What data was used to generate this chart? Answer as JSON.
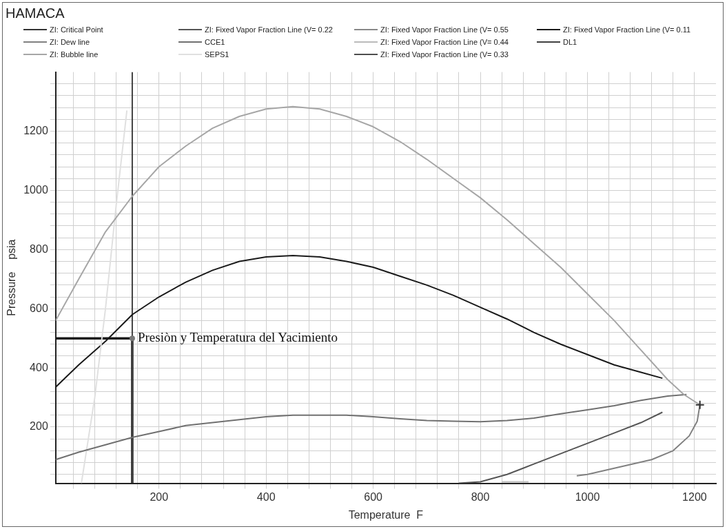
{
  "chart_data": {
    "type": "line",
    "title": "HAMACA",
    "xlabel": "Temperature  F",
    "ylabel": "Pressure    psia",
    "legend": "top",
    "grid": true,
    "xlim": [
      7,
      1240
    ],
    "ylim": [
      10,
      1400
    ],
    "xticks": [
      {
        "value": 40,
        "label": null
      },
      {
        "value": 80,
        "label": null
      },
      {
        "value": 120,
        "label": null
      },
      {
        "value": 160,
        "label": null
      },
      200,
      {
        "value": 240,
        "label": null
      },
      {
        "value": 280,
        "label": null
      },
      {
        "value": 320,
        "label": null
      },
      {
        "value": 360,
        "label": null
      },
      400,
      {
        "value": 440,
        "label": null
      },
      {
        "value": 480,
        "label": null
      },
      {
        "value": 520,
        "label": null
      },
      {
        "value": 560,
        "label": null
      },
      600,
      {
        "value": 640,
        "label": null
      },
      {
        "value": 680,
        "label": null
      },
      {
        "value": 720,
        "label": null
      },
      {
        "value": 760,
        "label": null
      },
      800,
      {
        "value": 840,
        "label": null
      },
      {
        "value": 880,
        "label": null
      },
      {
        "value": 920,
        "label": null
      },
      {
        "value": 960,
        "label": null
      },
      1000,
      {
        "value": 1040,
        "label": null
      },
      {
        "value": 1080,
        "label": null
      },
      {
        "value": 1120,
        "label": null
      },
      {
        "value": 1160,
        "label": null
      },
      1200
    ],
    "yticks": [
      {
        "value": 40,
        "label": null
      },
      {
        "value": 80,
        "label": null
      },
      {
        "value": 120,
        "label": null
      },
      {
        "value": 160,
        "label": null
      },
      200,
      {
        "value": 240,
        "label": null
      },
      {
        "value": 280,
        "label": null
      },
      {
        "value": 320,
        "label": null
      },
      {
        "value": 360,
        "label": null
      },
      400,
      {
        "value": 440,
        "label": null
      },
      {
        "value": 480,
        "label": null
      },
      {
        "value": 520,
        "label": null
      },
      {
        "value": 560,
        "label": null
      },
      600,
      {
        "value": 640,
        "label": null
      },
      {
        "value": 680,
        "label": null
      },
      {
        "value": 720,
        "label": null
      },
      {
        "value": 760,
        "label": null
      },
      800,
      {
        "value": 840,
        "label": null
      },
      {
        "value": 880,
        "label": null
      },
      {
        "value": 920,
        "label": null
      },
      {
        "value": 960,
        "label": null
      },
      1000,
      {
        "value": 1040,
        "label": null
      },
      {
        "value": 1080,
        "label": null
      },
      {
        "value": 1120,
        "label": null
      },
      {
        "value": 1160,
        "label": null
      },
      1200,
      {
        "value": 1240,
        "label": null
      },
      {
        "value": 1280,
        "label": null
      },
      {
        "value": 1320,
        "label": null
      },
      {
        "value": 1360,
        "label": null
      }
    ],
    "series": [
      {
        "name": "ZI: Critical Point",
        "color": "#333333",
        "marker": "cross",
        "x": [
          1210
        ],
        "values": [
          275
        ]
      },
      {
        "name": "ZI: Dew line",
        "color": "#808080",
        "x": [
          1210,
          1205,
          1190,
          1160,
          1120,
          1060,
          1000,
          980
        ],
        "values": [
          275,
          220,
          170,
          120,
          90,
          65,
          40,
          35
        ]
      },
      {
        "name": "ZI: Bubble line",
        "color": "#a6a6a6",
        "x": [
          7,
          50,
          100,
          150,
          200,
          250,
          300,
          350,
          400,
          450,
          500,
          550,
          600,
          650,
          700,
          750,
          800,
          850,
          900,
          950,
          1000,
          1050,
          1100,
          1150,
          1180,
          1210
        ],
        "values": [
          560,
          700,
          860,
          980,
          1080,
          1150,
          1210,
          1250,
          1275,
          1283,
          1275,
          1250,
          1215,
          1165,
          1105,
          1040,
          975,
          900,
          820,
          740,
          650,
          560,
          460,
          360,
          310,
          275
        ]
      },
      {
        "name": "ZI: Fixed Vapor Fraction Line (V= 0.22",
        "color": "#555555",
        "x": [
          760,
          800,
          850,
          900,
          950,
          1000,
          1050,
          1100,
          1140
        ],
        "values": [
          10,
          15,
          40,
          75,
          110,
          145,
          180,
          215,
          250
        ]
      },
      {
        "name": "CCE1",
        "color": "#707070",
        "x": [
          7,
          50,
          100,
          150,
          200,
          250,
          300,
          350,
          400,
          450,
          500,
          550,
          600,
          650,
          700,
          750,
          800,
          850,
          900,
          950,
          1000,
          1050,
          1100,
          1150,
          1185
        ],
        "values": [
          90,
          115,
          140,
          165,
          185,
          205,
          215,
          225,
          235,
          240,
          240,
          240,
          235,
          228,
          222,
          220,
          218,
          222,
          230,
          245,
          258,
          272,
          290,
          305,
          310
        ]
      },
      {
        "name": "SEPS1",
        "color": "#e0e0e0",
        "x": [
          55,
          80,
          100,
          120,
          140
        ],
        "values": [
          10,
          300,
          600,
          950,
          1270
        ]
      },
      {
        "name": "ZI: Fixed Vapor Fraction Line (V= 0.55",
        "color": "#888888"
      },
      {
        "name": "ZI: Fixed Vapor Fraction Line (V= 0.44",
        "color": "#bbbbbb",
        "x": [
          840,
          890
        ],
        "values": [
          15,
          15
        ]
      },
      {
        "name": "ZI: Fixed Vapor Fraction Line (V= 0.33",
        "color": "#4d4d4d"
      },
      {
        "name": "ZI: Fixed Vapor Fraction Line (V= 0.11",
        "color": "#1a1a1a",
        "x": [
          7,
          50,
          100,
          150,
          200,
          250,
          300,
          350,
          400,
          450,
          500,
          550,
          600,
          650,
          700,
          750,
          800,
          850,
          900,
          950,
          1000,
          1050,
          1100,
          1140
        ],
        "values": [
          335,
          410,
          490,
          580,
          640,
          690,
          730,
          760,
          775,
          780,
          775,
          760,
          740,
          710,
          680,
          645,
          605,
          565,
          520,
          480,
          445,
          410,
          385,
          365
        ]
      },
      {
        "name": "DL1",
        "color": "#404040",
        "x": [
          150,
          150
        ],
        "values": [
          10,
          1400
        ]
      },
      {
        "color": "#1a1a1a",
        "x": [
          7,
          150,
          150
        ],
        "values": [
          500,
          500,
          10
        ]
      }
    ],
    "annotations": [
      {
        "text": "Presiòn y Temperatura del Yacimiento",
        "x": 150,
        "y": 500
      }
    ]
  }
}
